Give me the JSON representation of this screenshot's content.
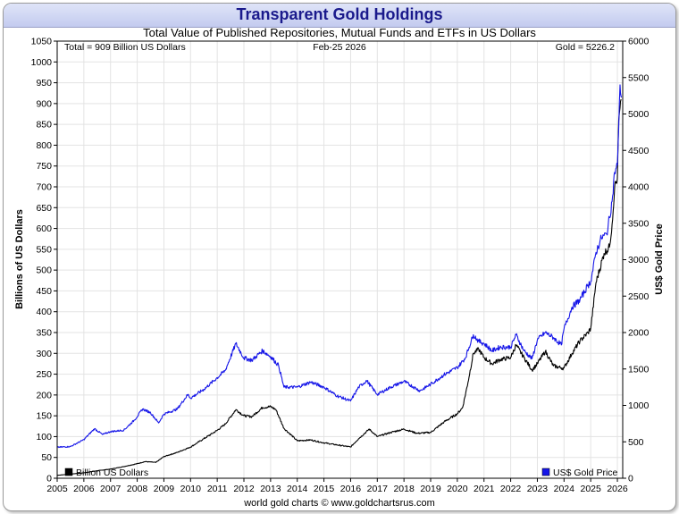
{
  "header": {
    "title": "Transparent Gold Holdings",
    "subtitle": "Total Value of Published Repositories, Mutual Funds and ETFs in US Dollars"
  },
  "annotations": {
    "total": "Total = 909 Billion US Dollars",
    "date": "Feb-25  2026",
    "gold": "Gold = 5226.2"
  },
  "footer": "world gold charts © www.goldchartsrus.com",
  "colors": {
    "holdings": "#000000",
    "gold": "#1515e8"
  },
  "chart_data": {
    "type": "line",
    "title": "Transparent Gold Holdings",
    "subtitle": "Total Value of Published Repositories, Mutual Funds and ETFs in US Dollars",
    "xlabel": "",
    "ylabel": "Billions of US Dollars",
    "y2label": "US$ Gold Price",
    "xlim": [
      2005,
      2026.2
    ],
    "ylim": [
      0,
      1050
    ],
    "y2lim": [
      0,
      6000
    ],
    "x_ticks": [
      "2005",
      "2006",
      "2007",
      "2008",
      "2009",
      "2010",
      "2011",
      "2012",
      "2013",
      "2014",
      "2015",
      "2016",
      "2017",
      "2018",
      "2019",
      "2020",
      "2021",
      "2022",
      "2023",
      "2024",
      "2025",
      "2026"
    ],
    "y_ticks": [
      0,
      50,
      100,
      150,
      200,
      250,
      300,
      350,
      400,
      450,
      500,
      550,
      600,
      650,
      700,
      750,
      800,
      850,
      900,
      950,
      1000,
      1050
    ],
    "y2_ticks": [
      0,
      500,
      1000,
      1500,
      2000,
      2500,
      3000,
      3500,
      4000,
      4500,
      5000,
      5500,
      6000
    ],
    "grid": true,
    "legend": [
      {
        "name": "Billion US Dollars",
        "position": "bottom-left"
      },
      {
        "name": "US$ Gold Price",
        "position": "bottom-right"
      }
    ],
    "series": [
      {
        "name": "Billion US Dollars",
        "axis": "left",
        "points": [
          [
            2005,
            7
          ],
          [
            2005.5,
            10
          ],
          [
            2006,
            13
          ],
          [
            2006.5,
            18
          ],
          [
            2007,
            22
          ],
          [
            2007.5,
            28
          ],
          [
            2008,
            35
          ],
          [
            2008.3,
            40
          ],
          [
            2008.7,
            38
          ],
          [
            2009,
            52
          ],
          [
            2009.5,
            62
          ],
          [
            2010,
            75
          ],
          [
            2010.5,
            95
          ],
          [
            2011,
            115
          ],
          [
            2011.3,
            130
          ],
          [
            2011.7,
            165
          ],
          [
            2012,
            150
          ],
          [
            2012.3,
            148
          ],
          [
            2012.7,
            170
          ],
          [
            2013,
            172
          ],
          [
            2013.2,
            165
          ],
          [
            2013.5,
            120
          ],
          [
            2014,
            90
          ],
          [
            2014.5,
            92
          ],
          [
            2015,
            85
          ],
          [
            2015.5,
            80
          ],
          [
            2016,
            75
          ],
          [
            2016.3,
            95
          ],
          [
            2016.7,
            118
          ],
          [
            2017,
            100
          ],
          [
            2017.5,
            110
          ],
          [
            2018,
            118
          ],
          [
            2018.5,
            108
          ],
          [
            2019,
            110
          ],
          [
            2019.5,
            135
          ],
          [
            2020,
            155
          ],
          [
            2020.2,
            170
          ],
          [
            2020.4,
            230
          ],
          [
            2020.6,
            300
          ],
          [
            2020.8,
            310
          ],
          [
            2021,
            290
          ],
          [
            2021.3,
            275
          ],
          [
            2021.6,
            285
          ],
          [
            2022,
            290
          ],
          [
            2022.2,
            320
          ],
          [
            2022.5,
            290
          ],
          [
            2022.8,
            260
          ],
          [
            2023,
            275
          ],
          [
            2023.3,
            305
          ],
          [
            2023.6,
            270
          ],
          [
            2023.9,
            265
          ],
          [
            2024,
            265
          ],
          [
            2024.3,
            300
          ],
          [
            2024.6,
            330
          ],
          [
            2024.9,
            350
          ],
          [
            2025,
            360
          ],
          [
            2025.2,
            470
          ],
          [
            2025.5,
            540
          ],
          [
            2025.7,
            555
          ],
          [
            2025.8,
            610
          ],
          [
            2025.9,
            700
          ],
          [
            2026,
            720
          ],
          [
            2026.05,
            860
          ],
          [
            2026.1,
            890
          ],
          [
            2026.15,
            909
          ]
        ]
      },
      {
        "name": "US$ Gold Price",
        "axis": "right",
        "points": [
          [
            2005,
            425
          ],
          [
            2005.5,
            435
          ],
          [
            2006,
            530
          ],
          [
            2006.4,
            680
          ],
          [
            2006.7,
            600
          ],
          [
            2007,
            640
          ],
          [
            2007.5,
            660
          ],
          [
            2007.9,
            800
          ],
          [
            2008.2,
            950
          ],
          [
            2008.5,
            900
          ],
          [
            2008.8,
            760
          ],
          [
            2009,
            880
          ],
          [
            2009.5,
            950
          ],
          [
            2009.9,
            1150
          ],
          [
            2010,
            1100
          ],
          [
            2010.5,
            1220
          ],
          [
            2011,
            1380
          ],
          [
            2011.3,
            1480
          ],
          [
            2011.7,
            1850
          ],
          [
            2012,
            1650
          ],
          [
            2012.3,
            1620
          ],
          [
            2012.7,
            1750
          ],
          [
            2013,
            1670
          ],
          [
            2013.3,
            1550
          ],
          [
            2013.5,
            1250
          ],
          [
            2014,
            1250
          ],
          [
            2014.5,
            1320
          ],
          [
            2015,
            1250
          ],
          [
            2015.5,
            1130
          ],
          [
            2016,
            1060
          ],
          [
            2016.3,
            1250
          ],
          [
            2016.6,
            1340
          ],
          [
            2017,
            1150
          ],
          [
            2017.5,
            1250
          ],
          [
            2018,
            1330
          ],
          [
            2018.6,
            1200
          ],
          [
            2019,
            1290
          ],
          [
            2019.5,
            1420
          ],
          [
            2020,
            1520
          ],
          [
            2020.3,
            1650
          ],
          [
            2020.6,
            1970
          ],
          [
            2020.8,
            1880
          ],
          [
            2021,
            1850
          ],
          [
            2021.3,
            1750
          ],
          [
            2021.6,
            1800
          ],
          [
            2022,
            1800
          ],
          [
            2022.2,
            1970
          ],
          [
            2022.5,
            1750
          ],
          [
            2022.8,
            1640
          ],
          [
            2023,
            1900
          ],
          [
            2023.3,
            2000
          ],
          [
            2023.6,
            1930
          ],
          [
            2023.9,
            1830
          ],
          [
            2024,
            2050
          ],
          [
            2024.3,
            2350
          ],
          [
            2024.6,
            2450
          ],
          [
            2024.9,
            2650
          ],
          [
            2025,
            2700
          ],
          [
            2025.2,
            3100
          ],
          [
            2025.4,
            3300
          ],
          [
            2025.6,
            3350
          ],
          [
            2025.8,
            3800
          ],
          [
            2025.9,
            4200
          ],
          [
            2026,
            4300
          ],
          [
            2026.05,
            4800
          ],
          [
            2026.1,
            5400
          ],
          [
            2026.15,
            5226
          ]
        ]
      }
    ]
  }
}
